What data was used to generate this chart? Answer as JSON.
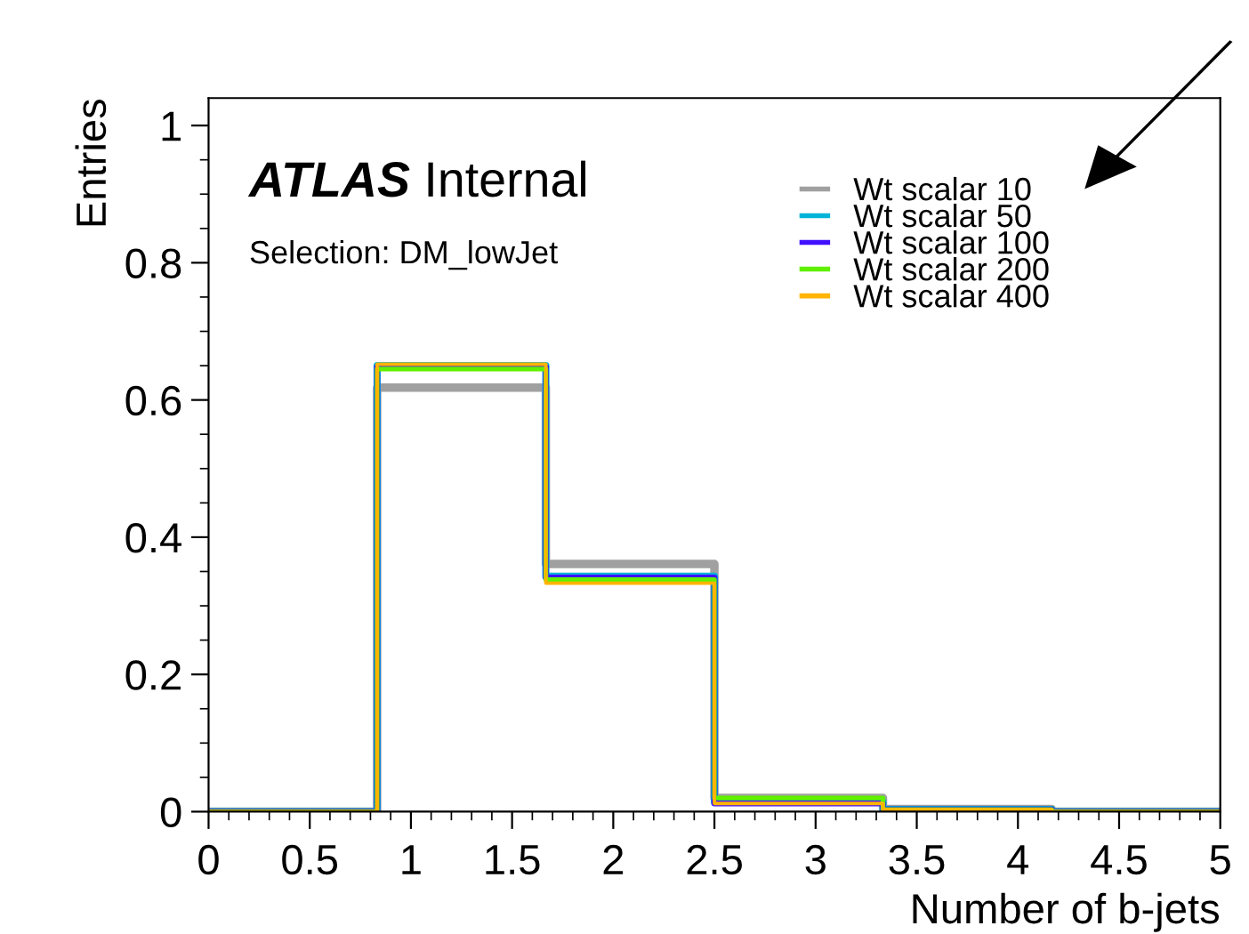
{
  "chart_data": {
    "type": "step",
    "xlabel": "Number of b-jets",
    "ylabel": "Entries",
    "annotations": [
      "ATLAS Internal",
      "Selection: DM_lowJet"
    ],
    "x": [
      0,
      0.833,
      1.667,
      2.5,
      3.333,
      4.167,
      5
    ],
    "series": [
      {
        "name": "Wt scalar 10",
        "color": "#a0a0a0",
        "values": [
          0,
          0.618,
          0.361,
          0.02,
          0.004,
          0,
          0
        ]
      },
      {
        "name": "Wt scalar 50",
        "color": "#00b4d8",
        "values": [
          0,
          0.65,
          0.343,
          0.014,
          0.003,
          0,
          0
        ]
      },
      {
        "name": "Wt scalar 100",
        "color": "#4010ff",
        "values": [
          0,
          0.648,
          0.341,
          0.012,
          0.003,
          0,
          0
        ]
      },
      {
        "name": "Wt scalar 200",
        "color": "#60f000",
        "values": [
          0,
          0.645,
          0.338,
          0.02,
          0.003,
          0,
          0
        ]
      },
      {
        "name": "Wt scalar 400",
        "color": "#ffb400",
        "values": [
          0,
          0.652,
          0.333,
          0.012,
          0.003,
          0,
          0
        ]
      }
    ],
    "xlim": [
      0,
      5
    ],
    "ylim": [
      0,
      1.04
    ],
    "xticks": [
      0,
      0.5,
      1,
      1.5,
      2,
      2.5,
      3,
      3.5,
      4,
      4.5,
      5
    ],
    "yticks": [
      0,
      0.2,
      0.4,
      0.6,
      0.8,
      1
    ],
    "legend": "top right",
    "grid": false
  }
}
